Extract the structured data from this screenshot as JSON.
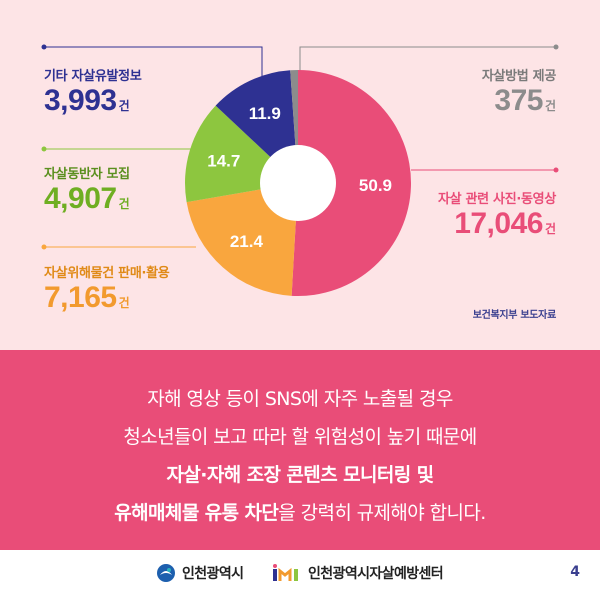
{
  "chart_data": {
    "type": "pie",
    "variant": "donut",
    "source": "보건복지부 보도자료",
    "slices": [
      {
        "label": "자살 관련 사진·동영상",
        "value": 50.9,
        "count": "17,046",
        "unit": "건",
        "color": "#e94d78"
      },
      {
        "label": "자살위해물건 판매·활용",
        "value": 21.4,
        "count": "7,165",
        "unit": "건",
        "color": "#f9a63e"
      },
      {
        "label": "자살동반자 모집",
        "value": 14.7,
        "count": "4,907",
        "unit": "건",
        "color": "#8dc63f"
      },
      {
        "label": "기타 자살유발정보",
        "value": 11.9,
        "count": "3,993",
        "unit": "건",
        "color": "#2e3192"
      },
      {
        "label": "자살방법 제공",
        "value": 1.1,
        "count": "375",
        "unit": "건",
        "color": "#8c8c8c"
      }
    ]
  },
  "message": {
    "line1": "자해 영상 등이 SNS에 자주 노출될 경우",
    "line2": "청소년들이 보고 따라 할 위험성이 높기 때문에",
    "line3": "자살·자해 조장 콘텐츠 모니터링 및",
    "line4_bold": "유해매체물 유통 차단",
    "line4_rest": "을 강력히 규제해야 합니다."
  },
  "footer": {
    "logo1": "인천광역시",
    "logo2": "인천광역시자살예방센터",
    "page_number": "4"
  },
  "colors": {
    "background_top": "#fde4e6",
    "band": "#e94d78",
    "navy": "#2e3192"
  }
}
